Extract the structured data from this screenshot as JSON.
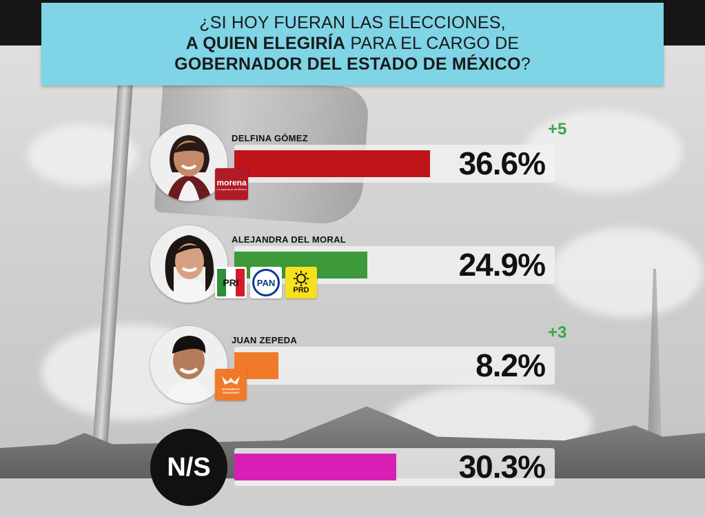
{
  "header": {
    "line1": "¿SI HOY FUERAN LAS ELECCIONES,",
    "line2_bold": "A QUIEN ELEGIRÍA",
    "line2_rest": " PARA EL CARGO DE",
    "line3_bold": "GOBERNADOR DEL ESTADO DE MÉXICO",
    "line3_end": "?"
  },
  "chart_data": {
    "type": "bar",
    "orientation": "horizontal",
    "categories": [
      "DELFINA GÓMEZ",
      "ALEJANDRA DEL MORAL",
      "JUAN ZEPEDA",
      "N/S"
    ],
    "values": [
      36.6,
      24.9,
      8.2,
      30.3
    ],
    "labels": [
      "36.6%",
      "24.9%",
      "8.2%",
      "30.3%"
    ],
    "deltas": [
      "+5",
      "",
      "+3",
      ""
    ],
    "colors": [
      "#c0141b",
      "#3d9a3a",
      "#f07a2a",
      "#d81fb5"
    ],
    "xlim": [
      0,
      60
    ]
  },
  "logos": {
    "morena": "morena",
    "morena_sub": "La esperanza de México",
    "pri": "PRI",
    "pan": "PAN",
    "prd": "PRD",
    "mc": "MOVIMIENTO CIUDADANO"
  },
  "icons": {
    "avatar": "person-photo-icon",
    "sun": "prd-sun-icon",
    "eagle": "mc-eagle-icon"
  }
}
